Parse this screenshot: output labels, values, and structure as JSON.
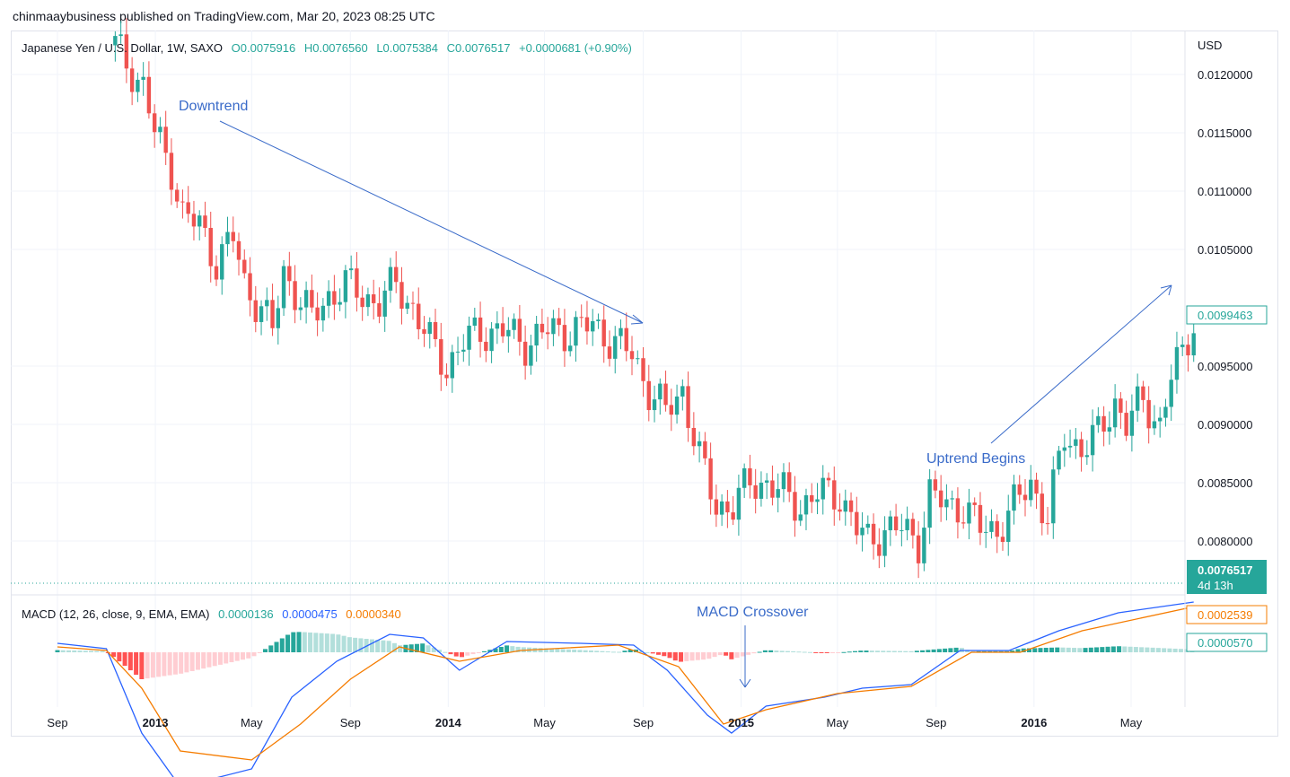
{
  "attribution": "chinmaaybusiness published on TradingView.com, Mar 20, 2023 08:25 UTC",
  "symbol": {
    "name": "Japanese Yen / U.S. Dollar, 1W, SAXO",
    "open": "O0.0075916",
    "high": "H0.0076560",
    "low": "L0.0075384",
    "close": "C0.0076517",
    "change": "+0.0000681 (+0.90%)"
  },
  "currency": "USD",
  "price_tags": {
    "last_value": "0.0099463",
    "current_price": "0.0076517",
    "countdown": "4d 13h"
  },
  "macd": {
    "name": "MACD (12, 26, close, 9, EMA, EMA)",
    "histogram_value": "0.0000136",
    "macd_value": "0.0000475",
    "signal_value": "0.0000340",
    "tag_signal": "0.0002539",
    "tag_hist": "0.0000570"
  },
  "annotations": {
    "downtrend": "Downtrend",
    "uptrend": "Uptrend Begins",
    "crossover": "MACD Crossover"
  },
  "colors": {
    "up": "#26a69a",
    "down": "#ef5350",
    "macd_line": "#2962ff",
    "signal_line": "#f57c00",
    "hist_up_strong": "#26a69a",
    "hist_up_weak": "#b2dfdb",
    "hist_down_strong": "#ff5252",
    "hist_down_weak": "#ffcdd2",
    "annotation": "#3a6bc9"
  },
  "chart_data": {
    "type": "candlestick",
    "interval": "1W",
    "y_axis": {
      "ticks": [
        "0.0120000",
        "0.0115000",
        "0.0110000",
        "0.0105000",
        "0.0095000",
        "0.0090000",
        "0.0085000",
        "0.0080000"
      ],
      "range": [
        0.0077,
        0.0123
      ]
    },
    "x_axis": {
      "ticks": [
        {
          "label": "Sep",
          "date": "2012-09",
          "bold": false
        },
        {
          "label": "2013",
          "date": "2013-01",
          "bold": true
        },
        {
          "label": "May",
          "date": "2013-05",
          "bold": false
        },
        {
          "label": "Sep",
          "date": "2013-09",
          "bold": false
        },
        {
          "label": "2014",
          "date": "2014-01",
          "bold": true
        },
        {
          "label": "May",
          "date": "2014-05",
          "bold": false
        },
        {
          "label": "Sep",
          "date": "2014-09",
          "bold": false
        },
        {
          "label": "2015",
          "date": "2015-01",
          "bold": true
        },
        {
          "label": "May",
          "date": "2015-05",
          "bold": false
        },
        {
          "label": "Sep",
          "date": "2015-09",
          "bold": false
        },
        {
          "label": "2016",
          "date": "2016-01",
          "bold": true
        },
        {
          "label": "May",
          "date": "2016-05",
          "bold": false
        }
      ]
    },
    "close_path": [
      [
        "2012-11-12",
        0.01225
      ],
      [
        "2012-11-26",
        0.0121
      ],
      [
        "2012-12-17",
        0.0119
      ],
      [
        "2012-12-31",
        0.0115
      ],
      [
        "2013-01-21",
        0.0112
      ],
      [
        "2013-02-04",
        0.0108
      ],
      [
        "2013-02-25",
        0.0107
      ],
      [
        "2013-03-18",
        0.0104
      ],
      [
        "2013-04-08",
        0.0106
      ],
      [
        "2013-04-22",
        0.0102
      ],
      [
        "2013-05-13",
        0.01
      ],
      [
        "2013-05-27",
        0.0098
      ],
      [
        "2013-06-10",
        0.0103
      ],
      [
        "2013-06-24",
        0.01015
      ],
      [
        "2013-07-15",
        0.0099
      ],
      [
        "2013-08-05",
        0.0101
      ],
      [
        "2013-08-26",
        0.0102
      ],
      [
        "2013-09-16",
        0.0101
      ],
      [
        "2013-10-07",
        0.01005
      ],
      [
        "2013-10-28",
        0.0102
      ],
      [
        "2013-11-18",
        0.01
      ],
      [
        "2013-12-09",
        0.0097
      ],
      [
        "2013-12-30",
        0.0095
      ],
      [
        "2014-01-20",
        0.0097
      ],
      [
        "2014-02-10",
        0.0098
      ],
      [
        "2014-03-10",
        0.0098
      ],
      [
        "2014-04-07",
        0.0097
      ],
      [
        "2014-05-05",
        0.0098
      ],
      [
        "2014-06-02",
        0.0098
      ],
      [
        "2014-06-30",
        0.00985
      ],
      [
        "2014-07-28",
        0.0097
      ],
      [
        "2014-08-18",
        0.0096
      ],
      [
        "2014-09-08",
        0.0093
      ],
      [
        "2014-09-29",
        0.0091
      ],
      [
        "2014-10-20",
        0.0093
      ],
      [
        "2014-11-10",
        0.0087
      ],
      [
        "2014-12-01",
        0.0083
      ],
      [
        "2014-12-22",
        0.0083
      ],
      [
        "2015-01-12",
        0.0085
      ],
      [
        "2015-02-02",
        0.0085
      ],
      [
        "2015-02-23",
        0.0084
      ],
      [
        "2015-03-16",
        0.0083
      ],
      [
        "2015-04-06",
        0.0084
      ],
      [
        "2015-05-04",
        0.0084
      ],
      [
        "2015-05-25",
        0.0081
      ],
      [
        "2015-06-08",
        0.008
      ],
      [
        "2015-06-29",
        0.0081
      ],
      [
        "2015-07-20",
        0.0081
      ],
      [
        "2015-08-10",
        0.008
      ],
      [
        "2015-08-24",
        0.0084
      ],
      [
        "2015-09-14",
        0.0083
      ],
      [
        "2015-10-05",
        0.0083
      ],
      [
        "2015-10-26",
        0.0081
      ],
      [
        "2015-11-16",
        0.0081
      ],
      [
        "2015-12-07",
        0.0083
      ],
      [
        "2015-12-28",
        0.0085
      ],
      [
        "2016-01-18",
        0.0082
      ],
      [
        "2016-02-08",
        0.0089
      ],
      [
        "2016-02-29",
        0.0088
      ],
      [
        "2016-03-21",
        0.0089
      ],
      [
        "2016-04-11",
        0.0092
      ],
      [
        "2016-04-25",
        0.009
      ],
      [
        "2016-05-16",
        0.0092
      ],
      [
        "2016-06-06",
        0.009
      ],
      [
        "2016-06-20",
        0.0094
      ],
      [
        "2016-07-04",
        0.0096
      ],
      [
        "2016-07-18",
        0.0099
      ]
    ],
    "macd_path": [
      [
        "2012-09-01",
        5e-05
      ],
      [
        "2012-11-01",
        2e-05
      ],
      [
        "2012-12-15",
        -0.00045
      ],
      [
        "2013-02-01",
        -0.00075
      ],
      [
        "2013-05-01",
        -0.00065
      ],
      [
        "2013-06-20",
        -0.00025
      ],
      [
        "2013-08-15",
        -5e-05
      ],
      [
        "2013-10-20",
        0.0001
      ],
      [
        "2013-12-01",
        8e-05
      ],
      [
        "2014-01-15",
        -0.0001
      ],
      [
        "2014-03-15",
        6e-05
      ],
      [
        "2014-06-15",
        5e-05
      ],
      [
        "2014-08-20",
        4e-05
      ],
      [
        "2014-10-01",
        -0.0001
      ],
      [
        "2014-11-20",
        -0.00035
      ],
      [
        "2014-12-20",
        -0.00045
      ],
      [
        "2015-02-01",
        -0.0003
      ],
      [
        "2015-04-15",
        -0.00025
      ],
      [
        "2015-06-01",
        -0.0002
      ],
      [
        "2015-08-01",
        -0.00018
      ],
      [
        "2015-10-01",
        1e-05
      ],
      [
        "2015-12-01",
        1e-05
      ],
      [
        "2016-02-01",
        0.00012
      ],
      [
        "2016-04-15",
        0.00022
      ],
      [
        "2016-07-18",
        0.00028
      ]
    ],
    "signal_path": [
      [
        "2012-09-01",
        3e-05
      ],
      [
        "2012-11-01",
        1e-05
      ],
      [
        "2012-12-15",
        -0.0002
      ],
      [
        "2013-02-01",
        -0.00055
      ],
      [
        "2013-05-01",
        -0.0006
      ],
      [
        "2013-07-01",
        -0.0004
      ],
      [
        "2013-09-01",
        -0.00015
      ],
      [
        "2013-11-01",
        3e-05
      ],
      [
        "2014-01-15",
        -5e-05
      ],
      [
        "2014-04-01",
        1e-05
      ],
      [
        "2014-08-01",
        4e-05
      ],
      [
        "2014-10-15",
        -8e-05
      ],
      [
        "2014-12-10",
        -0.0004
      ],
      [
        "2015-02-01",
        -0.00032
      ],
      [
        "2015-05-01",
        -0.00023
      ],
      [
        "2015-08-01",
        -0.00019
      ],
      [
        "2015-10-15",
        0.0
      ],
      [
        "2015-12-15",
        0.0
      ],
      [
        "2016-03-01",
        0.00012
      ],
      [
        "2016-07-18",
        0.0002539
      ]
    ]
  }
}
